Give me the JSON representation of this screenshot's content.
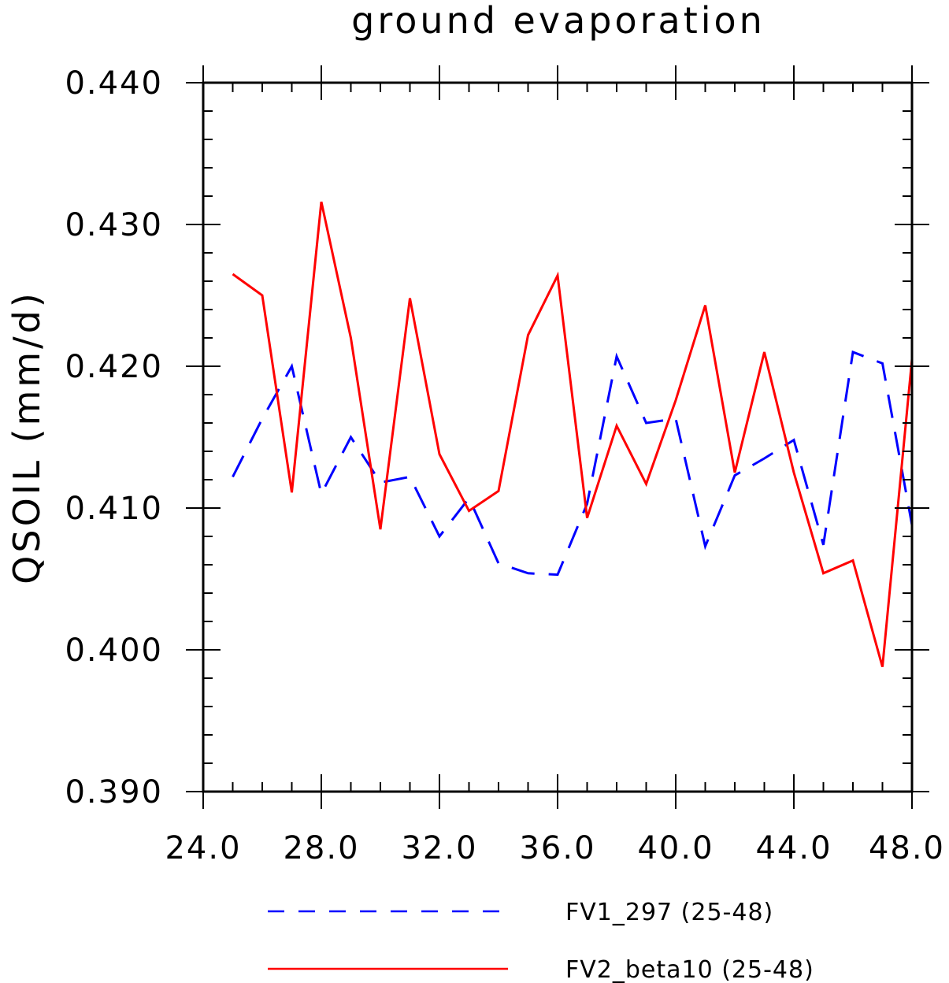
{
  "chart_data": {
    "type": "line",
    "title": "ground evaporation",
    "xlabel": "",
    "ylabel": "QSOIL  (mm/d)",
    "xlim": [
      24.0,
      48.0
    ],
    "ylim": [
      0.39,
      0.44
    ],
    "xticks": [
      24.0,
      28.0,
      32.0,
      36.0,
      40.0,
      44.0,
      48.0
    ],
    "xtick_labels": [
      "24.0",
      "28.0",
      "32.0",
      "36.0",
      "40.0",
      "44.0",
      "48.0"
    ],
    "yticks": [
      0.39,
      0.4,
      0.41,
      0.42,
      0.43,
      0.44
    ],
    "ytick_labels": [
      "0.390",
      "0.400",
      "0.410",
      "0.420",
      "0.430",
      "0.440"
    ],
    "grid": false,
    "legend_position": "bottom",
    "x": [
      25,
      26,
      27,
      28,
      29,
      30,
      31,
      32,
      33,
      34,
      35,
      36,
      37,
      38,
      39,
      40,
      41,
      42,
      43,
      44,
      45,
      46,
      47,
      48
    ],
    "series": [
      {
        "name": "FV1_297 (25-48)",
        "color": "#0000ff",
        "style": "dashed",
        "values": [
          0.4122,
          0.4163,
          0.42,
          0.411,
          0.415,
          0.4118,
          0.4122,
          0.408,
          0.4107,
          0.4061,
          0.4054,
          0.4053,
          0.4103,
          0.4207,
          0.416,
          0.4163,
          0.4073,
          0.4123,
          0.4135,
          0.4148,
          0.4074,
          0.421,
          0.4202,
          0.4088
        ]
      },
      {
        "name": "FV2_beta10 (25-48)",
        "color": "#ff0000",
        "style": "solid",
        "values": [
          0.4265,
          0.425,
          0.4111,
          0.4316,
          0.422,
          0.4085,
          0.4248,
          0.4138,
          0.4098,
          0.4112,
          0.4222,
          0.4264,
          0.4093,
          0.4158,
          0.4117,
          0.4176,
          0.4243,
          0.4125,
          0.421,
          0.4125,
          0.4054,
          0.4063,
          0.3988,
          0.4205
        ]
      }
    ]
  }
}
